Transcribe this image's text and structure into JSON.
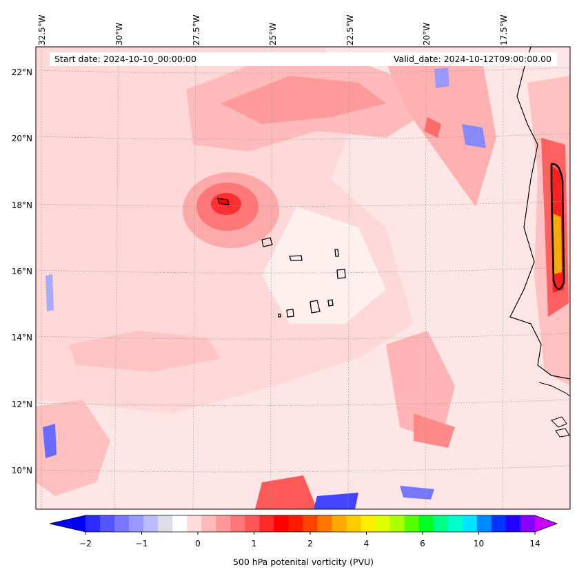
{
  "header": {
    "start_date": "Start date: 2024-10-10_00:00:00",
    "valid_date": "Valid_date: 2024-10-12T09:00:00.00"
  },
  "map": {
    "lon_labels": [
      "32.5°W",
      "30°W",
      "27.5°W",
      "25°W",
      "22.5°W",
      "20°W",
      "17.5°W"
    ],
    "lat_labels": [
      "22°N",
      "20°N",
      "18°N",
      "16°N",
      "14°N",
      "12°N",
      "10°N"
    ],
    "background_color": "#ffe6e6",
    "coastline_color": "#000000"
  },
  "colorbar": {
    "title": "500 hPa potenital vorticity (PVU)",
    "tick_labels": [
      "−2",
      "−1",
      "0",
      "1",
      "2",
      "4",
      "6",
      "10",
      "14"
    ],
    "colors": [
      "#0000ff",
      "#2a2aff",
      "#5555ff",
      "#7777ff",
      "#9999ff",
      "#bbbbff",
      "#dddde8",
      "#ffffff",
      "#ffdddd",
      "#ffbbbb",
      "#ff9999",
      "#ff7777",
      "#ff5555",
      "#ff2a2a",
      "#ff0000",
      "#ff1a00",
      "#ff4400",
      "#ff7700",
      "#ffaa00",
      "#ffcc00",
      "#ffee00",
      "#ddff00",
      "#aaff00",
      "#55ff00",
      "#00ff22",
      "#00ff88",
      "#00ffcc",
      "#00e5ff",
      "#0088ff",
      "#0033ff",
      "#2200ff",
      "#8800ff",
      "#cc00ff"
    ]
  }
}
